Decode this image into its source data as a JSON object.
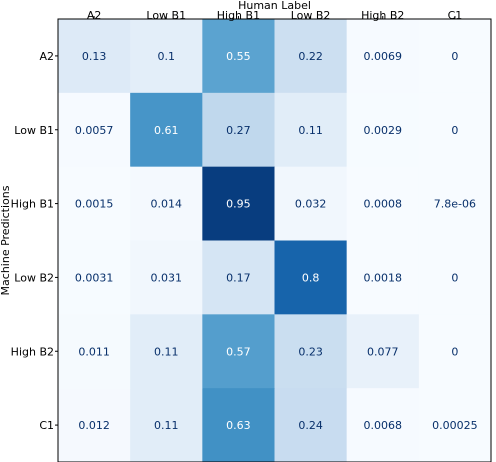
{
  "chart_data": {
    "type": "heatmap",
    "title": "",
    "xlabel": "Human Label",
    "ylabel": "Machine Predictions",
    "x_categories": [
      "A2",
      "Low B1",
      "High B1",
      "Low B2",
      "High B2",
      "C1"
    ],
    "y_categories": [
      "A2",
      "Low B1",
      "High B1",
      "Low B2",
      "High B2",
      "C1"
    ],
    "value_range": [
      0,
      1
    ],
    "colormap": "Blues",
    "matrix": [
      [
        0.13,
        0.1,
        0.55,
        0.22,
        0.0069,
        0
      ],
      [
        0.0057,
        0.61,
        0.27,
        0.11,
        0.0029,
        0
      ],
      [
        0.0015,
        0.014,
        0.95,
        0.032,
        0.0008,
        7.8e-06
      ],
      [
        0.0031,
        0.031,
        0.17,
        0.8,
        0.0018,
        0
      ],
      [
        0.011,
        0.11,
        0.57,
        0.23,
        0.077,
        0
      ],
      [
        0.012,
        0.11,
        0.63,
        0.24,
        0.0068,
        0.00025
      ]
    ],
    "labels": [
      [
        "0.13",
        "0.1",
        "0.55",
        "0.22",
        "0.0069",
        "0"
      ],
      [
        "0.0057",
        "0.61",
        "0.27",
        "0.11",
        "0.0029",
        "0"
      ],
      [
        "0.0015",
        "0.014",
        "0.95",
        "0.032",
        "0.0008",
        "7.8e-06"
      ],
      [
        "0.0031",
        "0.031",
        "0.17",
        "0.8",
        "0.0018",
        "0"
      ],
      [
        "0.011",
        "0.11",
        "0.57",
        "0.23",
        "0.077",
        "0"
      ],
      [
        "0.012",
        "0.11",
        "0.63",
        "0.24",
        "0.0068",
        "0.00025"
      ]
    ],
    "grid": false,
    "legend": "none"
  }
}
